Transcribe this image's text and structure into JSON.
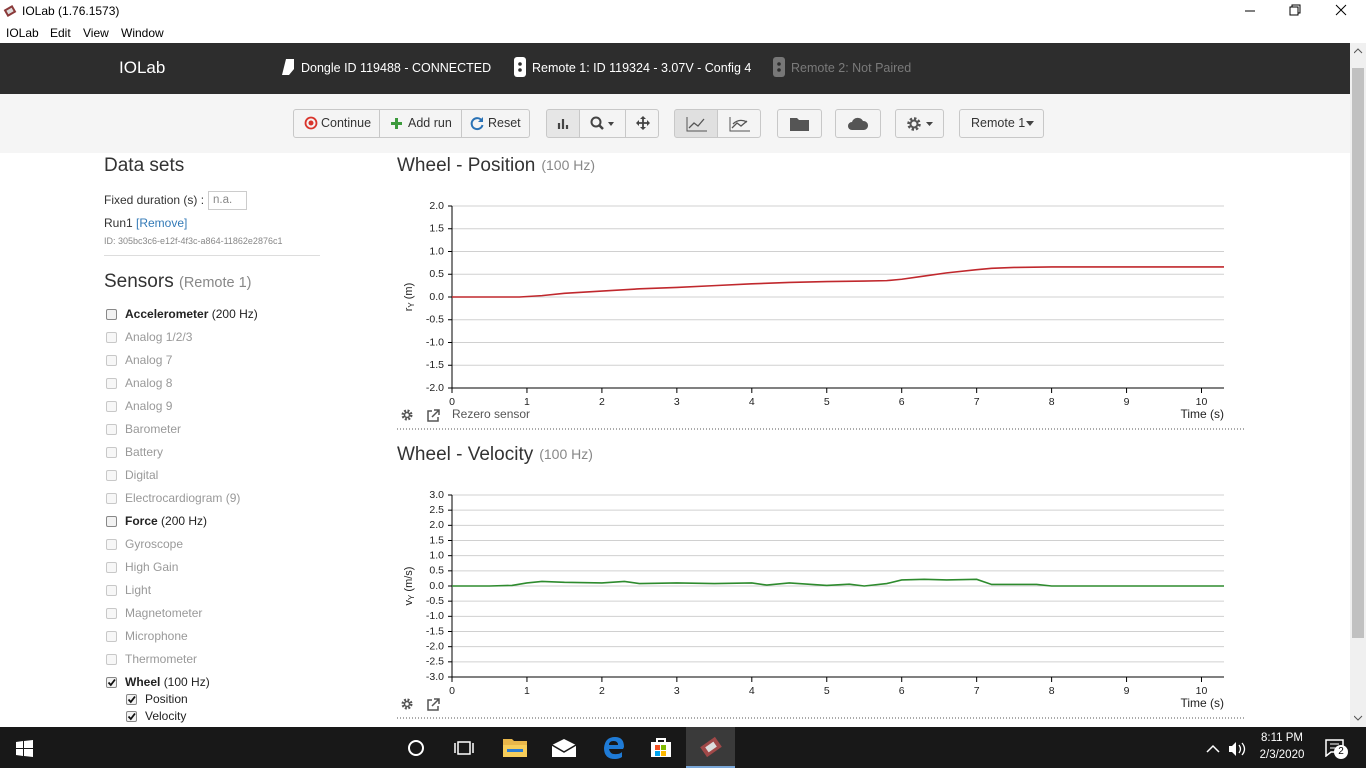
{
  "window": {
    "title": "IOLab (1.76.1573)"
  },
  "menu": [
    "IOLab",
    "Edit",
    "View",
    "Window"
  ],
  "header": {
    "app": "IOLab",
    "dongle": "Dongle ID 119488 - CONNECTED",
    "remote1": "Remote 1: ID 119324 - 3.07V - Config 4",
    "remote2": "Remote 2: Not Paired"
  },
  "toolbar": {
    "continue": "Continue",
    "add_run": "Add run",
    "reset": "Reset",
    "remote_select": "Remote 1"
  },
  "data_sets": {
    "title": "Data sets",
    "fixed_duration_label": "Fixed duration (s) :",
    "fixed_duration_placeholder": "n.a.",
    "run": "Run1",
    "remove": "[Remove]",
    "run_id": "ID: 305bc3c6-e12f-4f3c-a864-11862e2876c1"
  },
  "sensors": {
    "title": "Sensors",
    "remote": "(Remote 1)",
    "items": [
      {
        "name": "Accelerometer",
        "rate": "(200 Hz)",
        "checked": false,
        "enabled": true
      },
      {
        "name": "Analog 1/2/3",
        "checked": false,
        "enabled": false
      },
      {
        "name": "Analog 7",
        "checked": false,
        "enabled": false
      },
      {
        "name": "Analog 8",
        "checked": false,
        "enabled": false
      },
      {
        "name": "Analog 9",
        "checked": false,
        "enabled": false
      },
      {
        "name": "Barometer",
        "checked": false,
        "enabled": false
      },
      {
        "name": "Battery",
        "checked": false,
        "enabled": false
      },
      {
        "name": "Digital",
        "checked": false,
        "enabled": false
      },
      {
        "name": "Electrocardiogram (9)",
        "checked": false,
        "enabled": false
      },
      {
        "name": "Force",
        "rate": "(200 Hz)",
        "checked": false,
        "enabled": true
      },
      {
        "name": "Gyroscope",
        "checked": false,
        "enabled": false
      },
      {
        "name": "High Gain",
        "checked": false,
        "enabled": false
      },
      {
        "name": "Light",
        "checked": false,
        "enabled": false
      },
      {
        "name": "Magnetometer",
        "checked": false,
        "enabled": false
      },
      {
        "name": "Microphone",
        "checked": false,
        "enabled": false
      },
      {
        "name": "Thermometer",
        "checked": false,
        "enabled": false
      },
      {
        "name": "Wheel",
        "rate": "(100 Hz)",
        "checked": true,
        "enabled": true
      }
    ],
    "wheel_sub": [
      {
        "name": "Position",
        "checked": true
      },
      {
        "name": "Velocity",
        "checked": true
      }
    ]
  },
  "chart_data": [
    {
      "type": "line",
      "title": "Wheel - Position",
      "rate": "(100 Hz)",
      "y_symbol": "r",
      "y_subscript": "Y",
      "y_unit": "(m)",
      "xlabel": "Time (s)",
      "footer": "Rezero sensor",
      "x": [
        0,
        0.5,
        0.9,
        1.2,
        1.5,
        2,
        2.5,
        3,
        3.5,
        4,
        4.5,
        5,
        5.5,
        5.8,
        6,
        6.3,
        6.6,
        7,
        7.2,
        7.5,
        8,
        8.5,
        9,
        9.5,
        10,
        10.3
      ],
      "series": [
        {
          "color": "#c0282d",
          "values": [
            0,
            0,
            0,
            0.03,
            0.08,
            0.13,
            0.18,
            0.21,
            0.25,
            0.29,
            0.32,
            0.34,
            0.35,
            0.36,
            0.39,
            0.46,
            0.53,
            0.6,
            0.63,
            0.65,
            0.66,
            0.66,
            0.66,
            0.66,
            0.66,
            0.66
          ]
        }
      ],
      "xlim": [
        0,
        10.3
      ],
      "xticks": [
        0,
        1,
        2,
        3,
        4,
        5,
        6,
        7,
        8,
        9,
        10
      ],
      "ylim": [
        -2,
        2
      ],
      "yticks": [
        {
          "value": -2,
          "label": "-2.0"
        },
        {
          "value": -1.5,
          "label": "-1.5"
        },
        {
          "value": -1,
          "label": "-1.0"
        },
        {
          "value": -0.5,
          "label": "-0.5"
        },
        {
          "value": 0,
          "label": "0.0"
        },
        {
          "value": 0.5,
          "label": "0.5"
        },
        {
          "value": 1,
          "label": "1.0"
        },
        {
          "value": 1.5,
          "label": "1.5"
        },
        {
          "value": 2,
          "label": "2.0"
        }
      ],
      "grid": true
    },
    {
      "type": "line",
      "title": "Wheel - Velocity",
      "rate": "(100 Hz)",
      "y_symbol": "v",
      "y_subscript": "Y",
      "y_unit": "(m/s)",
      "xlabel": "Time (s)",
      "x": [
        0,
        0.5,
        0.8,
        1,
        1.2,
        1.5,
        2,
        2.3,
        2.5,
        3,
        3.5,
        4,
        4.2,
        4.5,
        5,
        5.3,
        5.5,
        5.8,
        6,
        6.3,
        6.6,
        7,
        7.2,
        7.5,
        7.8,
        8,
        9,
        10,
        10.3
      ],
      "series": [
        {
          "color": "#2e8b2e",
          "values": [
            0,
            0,
            0.02,
            0.1,
            0.15,
            0.12,
            0.1,
            0.15,
            0.08,
            0.1,
            0.08,
            0.1,
            0.03,
            0.1,
            0.02,
            0.06,
            0,
            0.08,
            0.2,
            0.22,
            0.2,
            0.22,
            0.05,
            0.05,
            0.05,
            0,
            0,
            0,
            0
          ]
        }
      ],
      "xlim": [
        0,
        10.3
      ],
      "xticks": [
        0,
        1,
        2,
        3,
        4,
        5,
        6,
        7,
        8,
        9,
        10
      ],
      "ylim": [
        -3,
        3
      ],
      "yticks": [
        {
          "value": -3,
          "label": "-3.0"
        },
        {
          "value": -2.5,
          "label": "-2.5"
        },
        {
          "value": -2,
          "label": "-2.0"
        },
        {
          "value": -1.5,
          "label": "-1.5"
        },
        {
          "value": -1,
          "label": "-1.0"
        },
        {
          "value": -0.5,
          "label": "-0.5"
        },
        {
          "value": 0,
          "label": "0.0"
        },
        {
          "value": 0.5,
          "label": "0.5"
        },
        {
          "value": 1,
          "label": "1.0"
        },
        {
          "value": 1.5,
          "label": "1.5"
        },
        {
          "value": 2,
          "label": "2.0"
        },
        {
          "value": 2.5,
          "label": "2.5"
        },
        {
          "value": 3,
          "label": "3.0"
        }
      ],
      "grid": true
    }
  ],
  "taskbar": {
    "time": "8:11 PM",
    "date": "2/3/2020",
    "notifications": "2"
  }
}
